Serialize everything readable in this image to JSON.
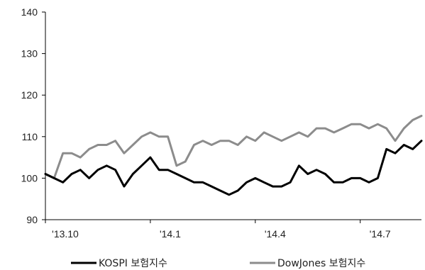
{
  "chart_data": {
    "type": "line",
    "title": "",
    "xlabel": "",
    "ylabel": "",
    "ylim": [
      90,
      140
    ],
    "yticks": [
      90,
      100,
      110,
      120,
      130,
      140
    ],
    "xlim": [
      0,
      43
    ],
    "xticks": [
      {
        "pos": 0,
        "label": "'13.10"
      },
      {
        "pos": 12,
        "label": "'14.1"
      },
      {
        "pos": 24,
        "label": "'14.4"
      },
      {
        "pos": 36,
        "label": "'14.7"
      }
    ],
    "grid": false,
    "legend_position": "bottom",
    "x": [
      0,
      1,
      2,
      3,
      4,
      5,
      6,
      7,
      8,
      9,
      10,
      11,
      12,
      13,
      14,
      15,
      16,
      17,
      18,
      19,
      20,
      21,
      22,
      23,
      24,
      25,
      26,
      27,
      28,
      29,
      30,
      31,
      32,
      33,
      34,
      35,
      36,
      37,
      38,
      39,
      40,
      41,
      42,
      43
    ],
    "series": [
      {
        "name": "KOSPI 보험지수",
        "color": "#000000",
        "values": [
          101,
          100,
          99,
          101,
          102,
          100,
          102,
          103,
          102,
          98,
          101,
          103,
          105,
          102,
          102,
          101,
          100,
          99,
          99,
          98,
          97,
          96,
          97,
          99,
          100,
          99,
          98,
          98,
          99,
          103,
          101,
          102,
          101,
          99,
          99,
          100,
          100,
          99,
          100,
          107,
          106,
          108,
          107,
          109
        ]
      },
      {
        "name": "DowJones 보험지수",
        "color": "#8c8c8c",
        "values": [
          101,
          100,
          106,
          106,
          105,
          107,
          108,
          108,
          109,
          106,
          108,
          110,
          111,
          110,
          110,
          103,
          104,
          108,
          109,
          108,
          109,
          109,
          108,
          110,
          109,
          111,
          110,
          109,
          110,
          111,
          110,
          112,
          112,
          111,
          112,
          113,
          113,
          112,
          113,
          112,
          109,
          112,
          114,
          115
        ]
      }
    ]
  }
}
